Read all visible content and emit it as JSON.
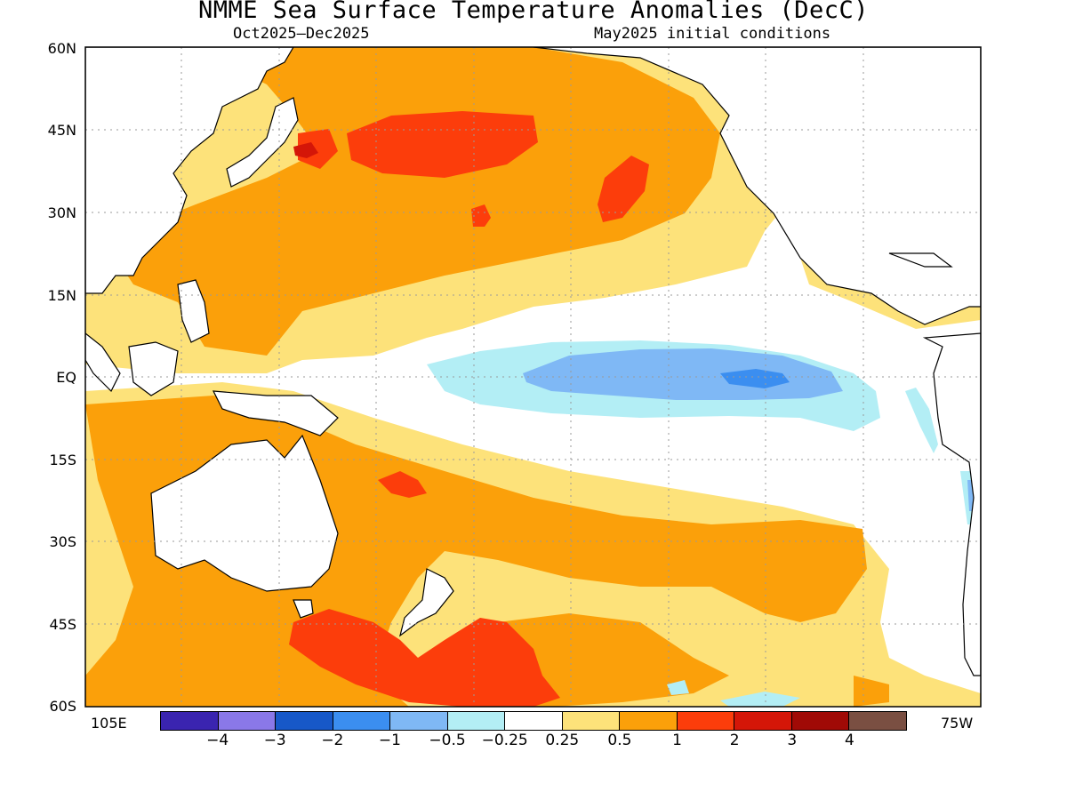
{
  "title": "NMME Sea Surface Temperature Anomalies (DecC)",
  "subtitle_left": "Oct2025–Dec2025",
  "subtitle_right": "May2025 initial conditions",
  "lat_labels": [
    "60N",
    "45N",
    "30N",
    "15N",
    "EQ",
    "15S",
    "30S",
    "45S",
    "60S"
  ],
  "lon_labels": {
    "left": "105E",
    "right": "75W"
  },
  "legend": {
    "colors": [
      "#3a24b0",
      "#8a78e8",
      "#1758c8",
      "#3b8ef0",
      "#7fb8f5",
      "#b3eef5",
      "#ffffff",
      "#fde27a",
      "#fba00a",
      "#fc3d0b",
      "#d41608",
      "#a00a06",
      "#7a4f42"
    ],
    "ticks": [
      "−4",
      "−3",
      "−2",
      "−1",
      "−0.5",
      "−0.25",
      "0.25",
      "0.5",
      "1",
      "2",
      "3",
      "4"
    ]
  },
  "map_colors": {
    "warm_025_05": "#fde27a",
    "warm_05_1": "#fba00a",
    "warm_1_2": "#fc3d0b",
    "warm_2_3": "#d41608",
    "cool_025_05": "#b3eef5",
    "cool_05_1": "#7fb8f5",
    "cool_1_2": "#3b8ef0",
    "land": "#ffffff",
    "coast": "#000000"
  }
}
